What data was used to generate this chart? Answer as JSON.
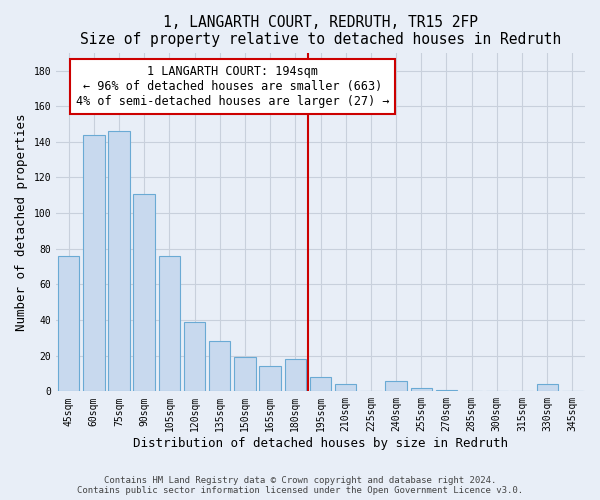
{
  "title": "1, LANGARTH COURT, REDRUTH, TR15 2FP",
  "subtitle": "Size of property relative to detached houses in Redruth",
  "xlabel": "Distribution of detached houses by size in Redruth",
  "ylabel": "Number of detached properties",
  "bar_labels": [
    "45sqm",
    "60sqm",
    "75sqm",
    "90sqm",
    "105sqm",
    "120sqm",
    "135sqm",
    "150sqm",
    "165sqm",
    "180sqm",
    "195sqm",
    "210sqm",
    "225sqm",
    "240sqm",
    "255sqm",
    "270sqm",
    "285sqm",
    "300sqm",
    "315sqm",
    "330sqm",
    "345sqm"
  ],
  "bar_values": [
    76,
    144,
    146,
    111,
    76,
    39,
    28,
    19,
    14,
    18,
    8,
    4,
    0,
    6,
    2,
    1,
    0,
    0,
    0,
    4,
    0
  ],
  "bar_color": "#c8d9ee",
  "bar_edge_color": "#6aaad4",
  "vline_color": "#cc0000",
  "annotation_title": "1 LANGARTH COURT: 194sqm",
  "annotation_line1": "← 96% of detached houses are smaller (663)",
  "annotation_line2": "4% of semi-detached houses are larger (27) →",
  "annotation_box_color": "#ffffff",
  "annotation_box_edge": "#cc0000",
  "ylim": [
    0,
    190
  ],
  "yticks": [
    0,
    20,
    40,
    60,
    80,
    100,
    120,
    140,
    160,
    180
  ],
  "footer1": "Contains HM Land Registry data © Crown copyright and database right 2024.",
  "footer2": "Contains public sector information licensed under the Open Government Licence v3.0.",
  "background_color": "#e8eef7",
  "plot_bg_color": "#e8eef7",
  "grid_color": "#c8d0dc",
  "title_fontsize": 10.5,
  "subtitle_fontsize": 9,
  "axis_label_fontsize": 9,
  "tick_fontsize": 7,
  "annotation_fontsize": 8.5,
  "footer_fontsize": 6.5
}
